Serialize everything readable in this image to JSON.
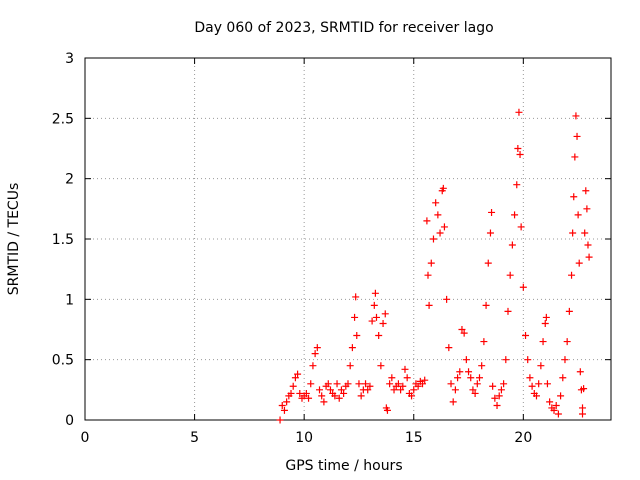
{
  "chart_data": {
    "type": "scatter",
    "title": "Day 060 of 2023, SRMTID for receiver lago",
    "xlabel": "GPS time / hours",
    "ylabel": "SRMTID / TECUs",
    "xlim": [
      0,
      24
    ],
    "ylim": [
      0,
      3
    ],
    "xticks": [
      0,
      5,
      10,
      15,
      20
    ],
    "yticks": [
      0,
      0.5,
      1,
      1.5,
      2,
      2.5,
      3
    ],
    "grid": true,
    "marker": "+",
    "color": "#ff0000",
    "series": [
      {
        "name": "SRMTID",
        "points": [
          [
            8.9,
            0.0
          ],
          [
            9.0,
            0.12
          ],
          [
            9.1,
            0.08
          ],
          [
            9.2,
            0.15
          ],
          [
            9.3,
            0.2
          ],
          [
            9.4,
            0.22
          ],
          [
            9.5,
            0.28
          ],
          [
            9.6,
            0.35
          ],
          [
            9.7,
            0.38
          ],
          [
            9.8,
            0.22
          ],
          [
            9.9,
            0.18
          ],
          [
            10.0,
            0.2
          ],
          [
            10.1,
            0.22
          ],
          [
            10.2,
            0.18
          ],
          [
            10.3,
            0.3
          ],
          [
            10.4,
            0.45
          ],
          [
            10.5,
            0.55
          ],
          [
            10.6,
            0.6
          ],
          [
            10.7,
            0.25
          ],
          [
            10.8,
            0.2
          ],
          [
            10.9,
            0.15
          ],
          [
            11.0,
            0.28
          ],
          [
            11.1,
            0.3
          ],
          [
            11.2,
            0.25
          ],
          [
            11.3,
            0.22
          ],
          [
            11.4,
            0.2
          ],
          [
            11.5,
            0.3
          ],
          [
            11.6,
            0.18
          ],
          [
            11.7,
            0.25
          ],
          [
            11.8,
            0.22
          ],
          [
            11.9,
            0.28
          ],
          [
            12.0,
            0.3
          ],
          [
            12.1,
            0.45
          ],
          [
            12.2,
            0.6
          ],
          [
            12.3,
            0.85
          ],
          [
            12.35,
            1.02
          ],
          [
            12.4,
            0.7
          ],
          [
            12.5,
            0.3
          ],
          [
            12.6,
            0.2
          ],
          [
            12.7,
            0.25
          ],
          [
            12.8,
            0.3
          ],
          [
            12.9,
            0.25
          ],
          [
            13.0,
            0.28
          ],
          [
            13.1,
            0.82
          ],
          [
            13.2,
            0.95
          ],
          [
            13.25,
            1.05
          ],
          [
            13.3,
            0.85
          ],
          [
            13.4,
            0.7
          ],
          [
            13.5,
            0.45
          ],
          [
            13.6,
            0.8
          ],
          [
            13.7,
            0.88
          ],
          [
            13.75,
            0.1
          ],
          [
            13.8,
            0.08
          ],
          [
            13.9,
            0.3
          ],
          [
            14.0,
            0.35
          ],
          [
            14.1,
            0.25
          ],
          [
            14.2,
            0.28
          ],
          [
            14.3,
            0.3
          ],
          [
            14.4,
            0.25
          ],
          [
            14.5,
            0.28
          ],
          [
            14.6,
            0.42
          ],
          [
            14.7,
            0.35
          ],
          [
            14.8,
            0.22
          ],
          [
            14.9,
            0.2
          ],
          [
            15.0,
            0.25
          ],
          [
            15.1,
            0.3
          ],
          [
            15.2,
            0.28
          ],
          [
            15.3,
            0.32
          ],
          [
            15.4,
            0.3
          ],
          [
            15.5,
            0.33
          ],
          [
            15.6,
            1.65
          ],
          [
            15.65,
            1.2
          ],
          [
            15.7,
            0.95
          ],
          [
            15.8,
            1.3
          ],
          [
            15.9,
            1.5
          ],
          [
            16.0,
            1.8
          ],
          [
            16.1,
            1.7
          ],
          [
            16.2,
            1.55
          ],
          [
            16.3,
            1.9
          ],
          [
            16.35,
            1.92
          ],
          [
            16.4,
            1.6
          ],
          [
            16.5,
            1.0
          ],
          [
            16.6,
            0.6
          ],
          [
            16.7,
            0.3
          ],
          [
            16.8,
            0.15
          ],
          [
            16.9,
            0.25
          ],
          [
            17.0,
            0.35
          ],
          [
            17.1,
            0.4
          ],
          [
            17.2,
            0.75
          ],
          [
            17.3,
            0.72
          ],
          [
            17.4,
            0.5
          ],
          [
            17.5,
            0.4
          ],
          [
            17.6,
            0.35
          ],
          [
            17.7,
            0.25
          ],
          [
            17.8,
            0.22
          ],
          [
            17.9,
            0.3
          ],
          [
            18.0,
            0.35
          ],
          [
            18.1,
            0.45
          ],
          [
            18.2,
            0.65
          ],
          [
            18.3,
            0.95
          ],
          [
            18.4,
            1.3
          ],
          [
            18.5,
            1.55
          ],
          [
            18.55,
            1.72
          ],
          [
            18.6,
            0.28
          ],
          [
            18.7,
            0.18
          ],
          [
            18.8,
            0.12
          ],
          [
            18.9,
            0.2
          ],
          [
            19.0,
            0.25
          ],
          [
            19.1,
            0.3
          ],
          [
            19.2,
            0.5
          ],
          [
            19.3,
            0.9
          ],
          [
            19.4,
            1.2
          ],
          [
            19.5,
            1.45
          ],
          [
            19.6,
            1.7
          ],
          [
            19.7,
            1.95
          ],
          [
            19.75,
            2.25
          ],
          [
            19.8,
            2.55
          ],
          [
            19.85,
            2.2
          ],
          [
            19.9,
            1.6
          ],
          [
            20.0,
            1.1
          ],
          [
            20.1,
            0.7
          ],
          [
            20.2,
            0.5
          ],
          [
            20.3,
            0.35
          ],
          [
            20.4,
            0.28
          ],
          [
            20.5,
            0.22
          ],
          [
            20.6,
            0.2
          ],
          [
            20.7,
            0.3
          ],
          [
            20.8,
            0.45
          ],
          [
            20.9,
            0.65
          ],
          [
            21.0,
            0.8
          ],
          [
            21.05,
            0.85
          ],
          [
            21.1,
            0.3
          ],
          [
            21.2,
            0.15
          ],
          [
            21.3,
            0.1
          ],
          [
            21.4,
            0.08
          ],
          [
            21.5,
            0.12
          ],
          [
            21.6,
            0.05
          ],
          [
            21.7,
            0.2
          ],
          [
            21.8,
            0.35
          ],
          [
            21.9,
            0.5
          ],
          [
            22.0,
            0.65
          ],
          [
            22.1,
            0.9
          ],
          [
            22.2,
            1.2
          ],
          [
            22.25,
            1.55
          ],
          [
            22.3,
            1.85
          ],
          [
            22.35,
            2.18
          ],
          [
            22.4,
            2.52
          ],
          [
            22.45,
            2.35
          ],
          [
            22.5,
            1.7
          ],
          [
            22.55,
            1.3
          ],
          [
            22.6,
            0.4
          ],
          [
            22.65,
            0.25
          ],
          [
            22.7,
            0.1
          ],
          [
            22.75,
            0.26
          ],
          [
            22.8,
            1.55
          ],
          [
            22.85,
            1.9
          ],
          [
            22.9,
            1.75
          ],
          [
            22.95,
            1.45
          ],
          [
            23.0,
            1.35
          ],
          [
            22.7,
            0.05
          ]
        ]
      }
    ]
  }
}
